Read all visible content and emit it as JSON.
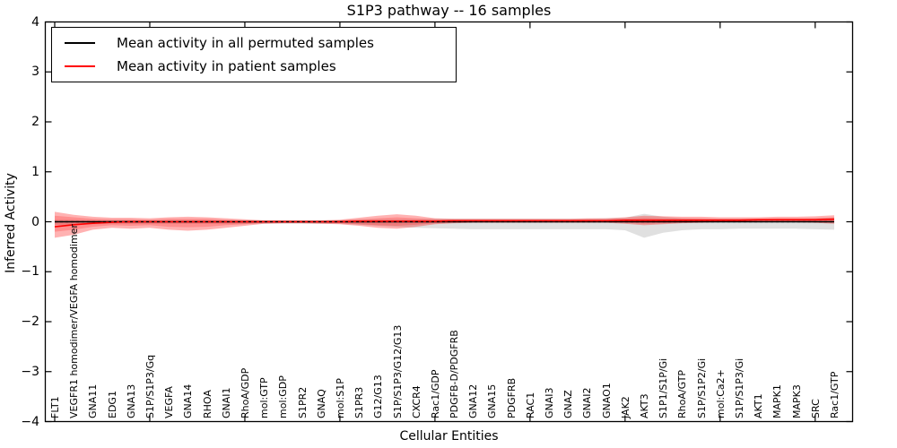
{
  "chart_data": {
    "type": "line",
    "title": "S1P3 pathway -- 16 samples",
    "xlabel": "Cellular Entities",
    "ylabel": "Inferred Activity",
    "ylim": [
      -4,
      4
    ],
    "grid": false,
    "yticks": [
      4,
      3,
      2,
      1,
      0,
      -1,
      -2,
      -3,
      -4
    ],
    "ytick_labels": [
      "4",
      "3",
      "2",
      "1",
      "0",
      "−1",
      "−2",
      "−3",
      "−4"
    ],
    "xtick_major_indices": [
      0,
      5,
      10,
      15,
      20,
      25,
      30,
      35,
      40
    ],
    "categories": [
      "FLT1",
      "VEGFR1 homodimer/VEGFA homodimer",
      "GNA11",
      "EDG1",
      "GNA13",
      "S1P/S1P3/Gq",
      "VEGFA",
      "GNA14",
      "RHOA",
      "GNAI1",
      "RhoA/GDP",
      "mol:GTP",
      "mol:GDP",
      "S1PR2",
      "GNAQ",
      "mol:S1P",
      "S1PR3",
      "G12/G13",
      "S1P/S1P3/G12/G13",
      "CXCR4",
      "Rac1/GDP",
      "PDGFB-D/PDGFRB",
      "GNA12",
      "GNA15",
      "PDGFRB",
      "RAC1",
      "GNAI3",
      "GNAZ",
      "GNAI2",
      "GNAO1",
      "JAK2",
      "AKT3",
      "S1P1/S1P/Gi",
      "RhoA/GTP",
      "S1P/S1P2/Gi",
      "mol:Ca2+",
      "S1P/S1P3/Gi",
      "AKT1",
      "MAPK1",
      "MAPK3",
      "SRC",
      "Rac1/GTP"
    ],
    "series": [
      {
        "name": "Mean activity in all permuted samples",
        "color": "#000000",
        "style": "solid-with-dashed-overlay",
        "values": [
          0,
          0,
          0,
          0,
          0,
          0,
          0,
          0,
          0,
          0,
          0,
          0,
          0,
          0,
          0,
          0,
          0,
          0,
          0,
          0,
          0,
          0,
          0,
          0,
          0,
          0,
          0,
          0,
          0,
          0,
          0,
          0,
          0,
          0,
          0,
          0,
          0,
          0,
          0,
          0,
          0,
          0
        ]
      },
      {
        "name": "Mean activity in patient samples",
        "color": "#ff0000",
        "style": "solid",
        "values": [
          -0.1,
          -0.06,
          -0.03,
          -0.01,
          0,
          0,
          0,
          0,
          0,
          0,
          0,
          0,
          0,
          0,
          0,
          0,
          0.01,
          0.01,
          0.01,
          0.01,
          0.01,
          0.02,
          0.02,
          0.02,
          0.02,
          0.02,
          0.02,
          0.02,
          0.02,
          0.02,
          0.03,
          0.03,
          0.03,
          0.03,
          0.03,
          0.03,
          0.03,
          0.04,
          0.04,
          0.04,
          0.04,
          0.05
        ]
      }
    ],
    "bands": [
      {
        "name": "permuted-samples-range",
        "color": "#000000",
        "opacity": 0.12,
        "upper": [
          0.04,
          0.04,
          0.03,
          0.03,
          0.03,
          0.03,
          0.03,
          0.03,
          0.03,
          0.03,
          0.03,
          0.03,
          0.03,
          0.03,
          0.03,
          0.03,
          0.04,
          0.05,
          0.05,
          0.05,
          0.06,
          0.06,
          0.06,
          0.06,
          0.06,
          0.06,
          0.06,
          0.06,
          0.06,
          0.07,
          0.08,
          0.16,
          0.1,
          0.07,
          0.06,
          0.06,
          0.06,
          0.06,
          0.06,
          0.06,
          0.07,
          0.08
        ],
        "lower": [
          -0.06,
          -0.06,
          -0.05,
          -0.04,
          -0.04,
          -0.04,
          -0.04,
          -0.04,
          -0.04,
          -0.04,
          -0.04,
          -0.04,
          -0.04,
          -0.04,
          -0.04,
          -0.04,
          -0.06,
          -0.08,
          -0.1,
          -0.12,
          -0.13,
          -0.14,
          -0.15,
          -0.15,
          -0.15,
          -0.15,
          -0.15,
          -0.15,
          -0.15,
          -0.15,
          -0.17,
          -0.32,
          -0.22,
          -0.17,
          -0.15,
          -0.15,
          -0.14,
          -0.14,
          -0.14,
          -0.14,
          -0.15,
          -0.16
        ]
      },
      {
        "name": "patient-samples-range-outer",
        "color": "#ff0000",
        "opacity": 0.3,
        "upper": [
          0.2,
          0.14,
          0.1,
          0.08,
          0.08,
          0.07,
          0.09,
          0.1,
          0.09,
          0.07,
          0.05,
          0.03,
          0.03,
          0.03,
          0.03,
          0.04,
          0.08,
          0.12,
          0.15,
          0.12,
          0.07,
          0.06,
          0.06,
          0.06,
          0.06,
          0.06,
          0.06,
          0.06,
          0.07,
          0.07,
          0.09,
          0.12,
          0.11,
          0.1,
          0.1,
          0.09,
          0.09,
          0.09,
          0.1,
          0.1,
          0.11,
          0.13
        ],
        "lower": [
          -0.32,
          -0.26,
          -0.16,
          -0.12,
          -0.14,
          -0.12,
          -0.16,
          -0.18,
          -0.16,
          -0.12,
          -0.08,
          -0.04,
          -0.03,
          -0.03,
          -0.04,
          -0.05,
          -0.08,
          -0.12,
          -0.14,
          -0.1,
          -0.05,
          -0.03,
          -0.02,
          -0.02,
          -0.02,
          -0.02,
          -0.02,
          -0.02,
          -0.02,
          -0.02,
          -0.04,
          -0.07,
          -0.05,
          -0.03,
          -0.02,
          -0.01,
          -0.01,
          -0.01,
          -0.01,
          -0.01,
          -0.02,
          -0.04
        ]
      },
      {
        "name": "patient-samples-range-inner",
        "color": "#ff0000",
        "opacity": 0.2,
        "upper": [
          0.12,
          0.09,
          0.06,
          0.05,
          0.05,
          0.04,
          0.06,
          0.06,
          0.06,
          0.04,
          0.03,
          0.02,
          0.02,
          0.02,
          0.02,
          0.03,
          0.05,
          0.07,
          0.09,
          0.07,
          0.05,
          0.04,
          0.04,
          0.04,
          0.04,
          0.04,
          0.04,
          0.04,
          0.05,
          0.05,
          0.06,
          0.08,
          0.07,
          0.07,
          0.07,
          0.06,
          0.06,
          0.06,
          0.07,
          0.07,
          0.07,
          0.09
        ],
        "lower": [
          -0.2,
          -0.16,
          -0.1,
          -0.07,
          -0.08,
          -0.07,
          -0.1,
          -0.11,
          -0.1,
          -0.07,
          -0.05,
          -0.02,
          -0.02,
          -0.02,
          -0.02,
          -0.03,
          -0.05,
          -0.07,
          -0.08,
          -0.06,
          -0.03,
          -0.02,
          -0.01,
          -0.01,
          -0.01,
          -0.01,
          -0.01,
          -0.01,
          -0.01,
          -0.01,
          -0.02,
          -0.04,
          -0.03,
          -0.02,
          -0.01,
          -0.01,
          -0.01,
          -0.01,
          -0.01,
          -0.01,
          -0.01,
          -0.02
        ]
      }
    ],
    "legend": {
      "position": "upper left",
      "entries": [
        {
          "label": "Mean activity in all permuted samples",
          "color": "#000000"
        },
        {
          "label": "Mean activity in patient samples",
          "color": "#ff0000"
        }
      ]
    }
  }
}
